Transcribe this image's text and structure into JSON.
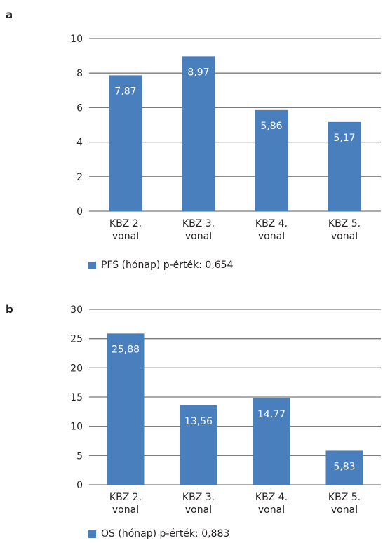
{
  "colors": {
    "bar": "#4a7fbd",
    "grid": "#7b7b7b",
    "label": "#ffffff"
  },
  "chart_data": [
    {
      "panel": "a",
      "type": "bar",
      "categories": [
        "KBZ 2.\nvonal",
        "KBZ 3.\nvonal",
        "KBZ 4.\nvonal",
        "KBZ 5.\nvonal"
      ],
      "values": [
        7.87,
        8.97,
        5.86,
        5.17
      ],
      "value_labels": [
        "7,87",
        "8,97",
        "5,86",
        "5,17"
      ],
      "yticks": [
        0,
        2,
        4,
        6,
        8,
        10
      ],
      "ylim": [
        0,
        10
      ],
      "grid": true,
      "legend": "PFS (hónap) p-érték: 0,654",
      "legend_position": "bottom-left"
    },
    {
      "panel": "b",
      "type": "bar",
      "categories": [
        "KBZ 2.\nvonal",
        "KBZ 3.\nvonal",
        "KBZ 4.\nvonal",
        "KBZ 5.\nvonal"
      ],
      "values": [
        25.88,
        13.56,
        14.77,
        5.83
      ],
      "value_labels": [
        "25,88",
        "13,56",
        "14,77",
        "5,83"
      ],
      "yticks": [
        0,
        5,
        10,
        15,
        20,
        25,
        30
      ],
      "ylim": [
        0,
        30
      ],
      "grid": true,
      "legend": "OS (hónap) p-érték: 0,883",
      "legend_position": "bottom-left"
    }
  ]
}
